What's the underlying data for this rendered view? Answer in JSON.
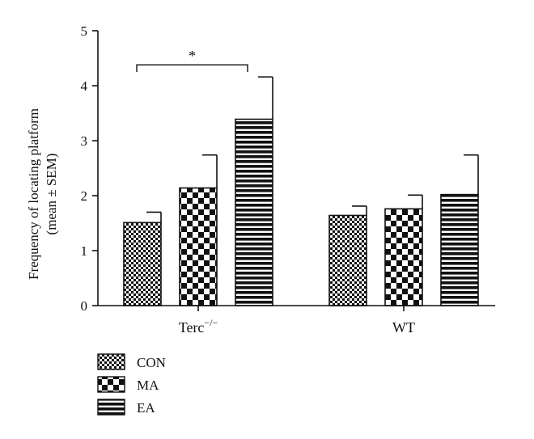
{
  "chart_data": {
    "type": "bar",
    "ylabel_line1": "Frequency of locating platform",
    "ylabel_line2": "(mean ± SEM)",
    "ylim": [
      0,
      5
    ],
    "yticks": [
      0,
      1,
      2,
      3,
      4,
      5
    ],
    "groups": [
      {
        "label_main": "Terc",
        "label_sup": "−/−",
        "label_full": "Terc−/−"
      },
      {
        "label_main": "WT",
        "label_sup": "",
        "label_full": "WT"
      }
    ],
    "series": [
      {
        "name": "CON",
        "pattern": "fine-checker",
        "values": [
          1.51,
          1.64
        ],
        "sem": [
          0.19,
          0.17
        ]
      },
      {
        "name": "MA",
        "pattern": "coarse-checker",
        "values": [
          2.14,
          1.76
        ],
        "sem": [
          0.6,
          0.25
        ]
      },
      {
        "name": "EA",
        "pattern": "horizontal-stripes",
        "values": [
          3.39,
          2.02
        ],
        "sem": [
          0.77,
          0.72
        ]
      }
    ],
    "significance": [
      {
        "group": 0,
        "from_series": 0,
        "to_series": 2,
        "label": "*",
        "y": 4.38
      }
    ],
    "legend_position": "bottom-left",
    "grid": false
  }
}
